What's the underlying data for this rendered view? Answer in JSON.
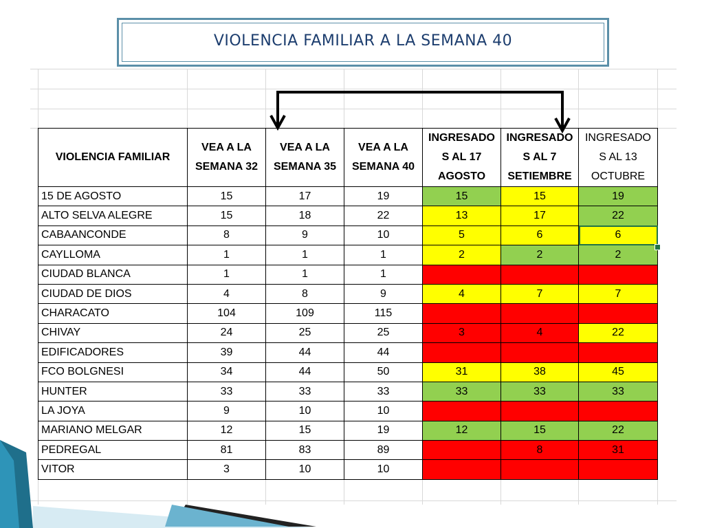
{
  "title": "VIOLENCIA FAMILIAR A LA SEMANA 40",
  "columns": [
    "VIOLENCIA FAMILIAR",
    "VEA A LA SEMANA 32",
    "VEA A LA SEMANA 35",
    "VEA A LA SEMANA 40",
    "INGRESADO S AL 17 AGOSTO",
    "INGRESADO S AL 7 SETIEMBRE",
    "INGRESADO S AL 13 OCTUBRE"
  ],
  "status_colors": {
    "green": "#92d050",
    "yellow": "#ffff00",
    "red": "#ff0000"
  },
  "rows": [
    {
      "name": "15 DE AGOSTO",
      "s32": "15",
      "s35": "17",
      "s40": "19",
      "ago": "15",
      "ago_c": "green",
      "set": "15",
      "set_c": "yellow",
      "oct": "19",
      "oct_c": "green"
    },
    {
      "name": "ALTO SELVA ALEGRE",
      "s32": "15",
      "s35": "18",
      "s40": "22",
      "ago": "13",
      "ago_c": "yellow",
      "set": "17",
      "set_c": "yellow",
      "oct": "22",
      "oct_c": "green"
    },
    {
      "name": "CABAANCONDE",
      "s32": "8",
      "s35": "9",
      "s40": "10",
      "ago": "5",
      "ago_c": "yellow",
      "set": "6",
      "set_c": "yellow",
      "oct": "6",
      "oct_c": "yellow"
    },
    {
      "name": "CAYLLOMA",
      "s32": "1",
      "s35": "1",
      "s40": "1",
      "ago": "2",
      "ago_c": "yellow",
      "set": "2",
      "set_c": "green",
      "oct": "2",
      "oct_c": "green"
    },
    {
      "name": "CIUDAD BLANCA",
      "s32": "1",
      "s35": "1",
      "s40": "1",
      "ago": "",
      "ago_c": "red",
      "set": "",
      "set_c": "red",
      "oct": "",
      "oct_c": "red"
    },
    {
      "name": "CIUDAD DE DIOS",
      "s32": "4",
      "s35": "8",
      "s40": "9",
      "ago": "4",
      "ago_c": "yellow",
      "set": "7",
      "set_c": "yellow",
      "oct": "7",
      "oct_c": "yellow"
    },
    {
      "name": "CHARACATO",
      "s32": "104",
      "s35": "109",
      "s40": "115",
      "ago": "",
      "ago_c": "red",
      "set": "",
      "set_c": "red",
      "oct": "",
      "oct_c": "red"
    },
    {
      "name": "CHIVAY",
      "s32": "24",
      "s35": "25",
      "s40": "25",
      "ago": "3",
      "ago_c": "red",
      "set": "4",
      "set_c": "red",
      "oct": "22",
      "oct_c": "yellow"
    },
    {
      "name": "EDIFICADORES",
      "s32": "39",
      "s35": "44",
      "s40": "44",
      "ago": "",
      "ago_c": "red",
      "set": "",
      "set_c": "red",
      "oct": "",
      "oct_c": "red"
    },
    {
      "name": "FCO BOLGNESI",
      "s32": "34",
      "s35": "44",
      "s40": "50",
      "ago": "31",
      "ago_c": "yellow",
      "set": "38",
      "set_c": "yellow",
      "oct": "45",
      "oct_c": "yellow"
    },
    {
      "name": "HUNTER",
      "s32": "33",
      "s35": "33",
      "s40": "33",
      "ago": "33",
      "ago_c": "green",
      "set": "33",
      "set_c": "green",
      "oct": "33",
      "oct_c": "green"
    },
    {
      "name": "LA JOYA",
      "s32": "9",
      "s35": "10",
      "s40": "10",
      "ago": "",
      "ago_c": "red",
      "set": "",
      "set_c": "red",
      "oct": "",
      "oct_c": "red"
    },
    {
      "name": "MARIANO MELGAR",
      "s32": "12",
      "s35": "15",
      "s40": "19",
      "ago": "12",
      "ago_c": "green",
      "set": "15",
      "set_c": "green",
      "oct": "22",
      "oct_c": "green"
    },
    {
      "name": "PEDREGAL",
      "s32": "81",
      "s35": "83",
      "s40": "89",
      "ago": "",
      "ago_c": "red",
      "set": "8",
      "set_c": "red",
      "oct": "31",
      "oct_c": "red"
    },
    {
      "name": "VITOR",
      "s32": "3",
      "s35": "10",
      "s40": "10",
      "ago": "",
      "ago_c": "red",
      "set": "",
      "set_c": "red",
      "oct": "",
      "oct_c": "red"
    }
  ]
}
